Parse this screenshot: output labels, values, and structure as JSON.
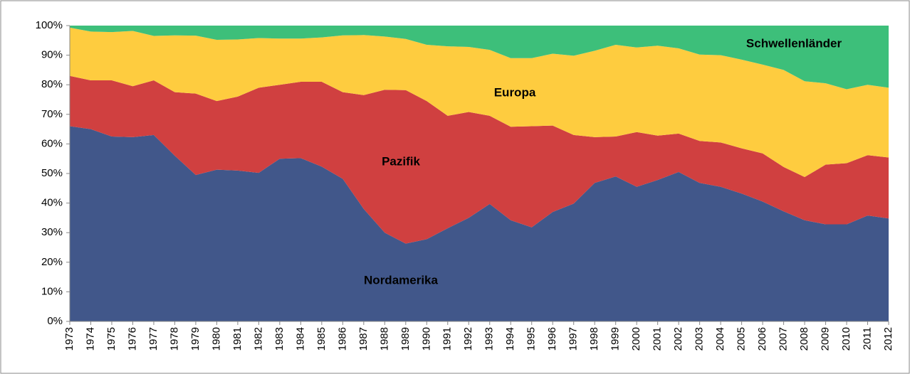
{
  "chart_data": {
    "type": "stacked-area",
    "categories": [
      "1973",
      "1974",
      "1975",
      "1976",
      "1977",
      "1978",
      "1979",
      "1980",
      "1981",
      "1982",
      "1983",
      "1984",
      "1985",
      "1986",
      "1987",
      "1988",
      "1989",
      "1990",
      "1991",
      "1992",
      "1993",
      "1994",
      "1995",
      "1996",
      "1997",
      "1998",
      "1999",
      "2000",
      "2001",
      "2002",
      "2003",
      "2004",
      "2005",
      "2006",
      "2007",
      "2008",
      "2009",
      "2010",
      "2011",
      "2012"
    ],
    "series": [
      {
        "name": "Nordamerika",
        "color": "#41578a",
        "values": [
          66,
          65,
          62.5,
          62.3,
          63,
          56,
          49.5,
          51.3,
          51,
          50.2,
          55,
          55.2,
          52.3,
          48.2,
          38,
          30,
          26.3,
          27.8,
          31.5,
          35,
          39.7,
          34.2,
          31.8,
          37,
          39.8,
          46.8,
          49,
          45.5,
          47.8,
          50.5,
          46.8,
          45.5,
          43.2,
          40.5,
          37.2,
          34.2,
          32.8,
          32.8,
          35.8,
          34.8
        ]
      },
      {
        "name": "Pazifik",
        "color": "#d04040",
        "values": [
          17,
          16.5,
          19,
          17.2,
          18.5,
          21.5,
          27.5,
          23.2,
          25,
          28.8,
          25,
          25.8,
          28.7,
          29.3,
          38.5,
          48.3,
          51.9,
          46.7,
          38,
          35.8,
          29.8,
          31.6,
          34.2,
          29.2,
          23.2,
          15.5,
          13.5,
          18.5,
          15,
          13,
          14.2,
          15,
          15.3,
          16.3,
          15,
          14.6,
          20.2,
          20.7,
          20.4,
          20.6
        ]
      },
      {
        "name": "Europa",
        "color": "#fecc3f",
        "values": [
          16.3,
          16.5,
          16.3,
          18.7,
          15,
          19.2,
          19.6,
          20.7,
          19.3,
          16.8,
          15.6,
          14.6,
          15,
          19.2,
          20.3,
          18,
          17.3,
          19,
          23.5,
          22,
          22.3,
          23.2,
          23,
          24.3,
          26.8,
          29.2,
          31,
          28.6,
          30.4,
          28.8,
          29.2,
          29.5,
          30,
          30,
          32.8,
          32.4,
          27.5,
          25,
          23.8,
          23.6
        ]
      },
      {
        "name": "Schwellenländer",
        "color": "#3dbf7a",
        "values": [
          0.7,
          2,
          2.2,
          1.8,
          3.5,
          3.3,
          3.4,
          4.8,
          4.7,
          4.2,
          4.4,
          4.4,
          4,
          3.3,
          3.2,
          3.7,
          4.5,
          6.5,
          7,
          7.2,
          8.2,
          11,
          11,
          9.5,
          10.2,
          8.5,
          6.5,
          7.4,
          6.8,
          7.7,
          9.8,
          10,
          11.5,
          13.2,
          15,
          18.8,
          19.5,
          21.5,
          20,
          21
        ]
      }
    ],
    "ylim": [
      0,
      100
    ],
    "yticks": [
      {
        "value": 0,
        "label": "0%"
      },
      {
        "value": 10,
        "label": "10%"
      },
      {
        "value": 20,
        "label": "20%"
      },
      {
        "value": 30,
        "label": "30%"
      },
      {
        "value": 40,
        "label": "40%"
      },
      {
        "value": 50,
        "label": "50%"
      },
      {
        "value": 60,
        "label": "60%"
      },
      {
        "value": 70,
        "label": "70%"
      },
      {
        "value": 80,
        "label": "80%"
      },
      {
        "value": 90,
        "label": "90%"
      },
      {
        "value": 100,
        "label": "100%"
      }
    ],
    "grid": false
  }
}
